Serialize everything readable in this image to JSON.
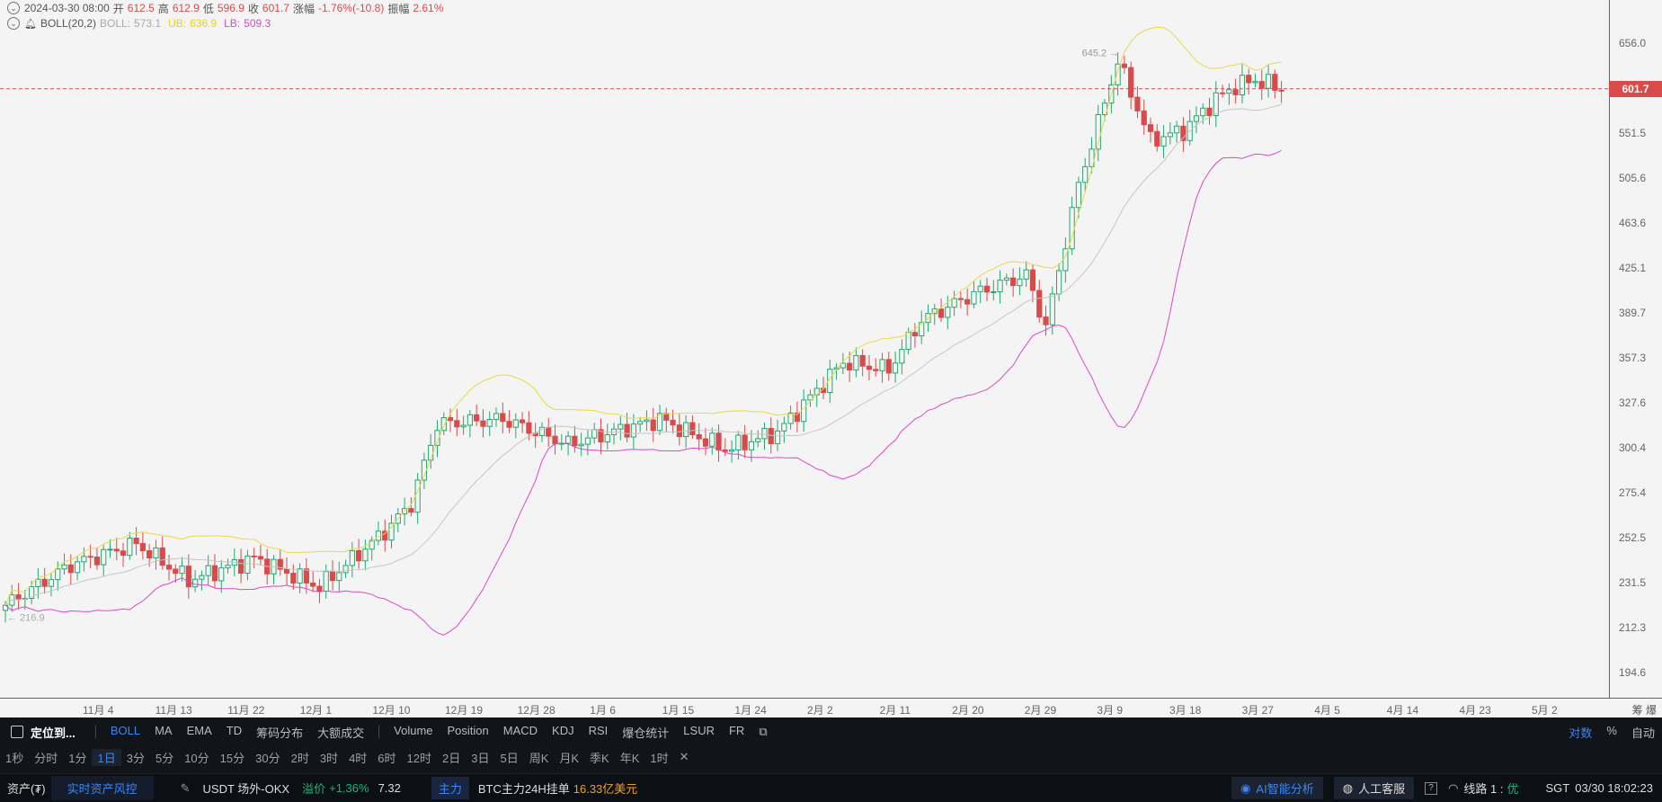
{
  "info": {
    "date": "2024-03-30 08:00",
    "open_label": "开",
    "open": "612.5",
    "high_label": "高",
    "high": "612.9",
    "low_label": "低",
    "low": "596.9",
    "close_label": "收",
    "close": "601.7",
    "change_label": "涨幅",
    "change": "-1.76%(-10.8)",
    "amp_label": "振幅",
    "amp": "2.61%"
  },
  "boll": {
    "name": "BOLL(20,2)",
    "mid_label": "BOLL:",
    "mid": "573.1",
    "ub_label": "UB:",
    "ub": "636.9",
    "lb_label": "LB:",
    "lb": "509.3"
  },
  "price_axis": {
    "ticks": [
      "656.0",
      "601.7",
      "551.5",
      "505.6",
      "463.6",
      "425.1",
      "389.7",
      "357.3",
      "327.6",
      "300.4",
      "275.4",
      "252.5",
      "231.5",
      "212.3",
      "194.6"
    ],
    "current": "601.7"
  },
  "time_axis": {
    "ticks": [
      "11月 4",
      "11月 13",
      "11月 22",
      "12月 1",
      "12月 10",
      "12月 19",
      "12月 28",
      "1月 6",
      "1月 15",
      "1月 24",
      "2月 2",
      "2月 11",
      "2月 20",
      "2月 29",
      "3月 9",
      "3月 18",
      "3月 27",
      "4月 5",
      "4月 14",
      "4月 23",
      "5月 2"
    ],
    "right_label": "筹 爆"
  },
  "chart_data": {
    "type": "candlestick",
    "interval": "1日",
    "scale": "log",
    "max_label": "645.2",
    "min_label": "216.9",
    "current_price": 601.7,
    "indicator": "BOLL(20,2)",
    "colors": {
      "up": "#22a86f",
      "down": "#d94a4a",
      "mid": "#c6c6c6",
      "ub": "#e8d84a",
      "lb": "#d94ac4"
    }
  },
  "toolbar": {
    "locate": "定位到...",
    "indicators": [
      "BOLL",
      "MA",
      "EMA",
      "TD",
      "筹码分布",
      "大额成交"
    ],
    "sub_indicators": [
      "Volume",
      "Position",
      "MACD",
      "KDJ",
      "RSI",
      "爆仓统计",
      "LSUR",
      "FR"
    ],
    "right_items": [
      "对数",
      "%",
      "自动"
    ]
  },
  "timeframes": [
    "1秒",
    "分时",
    "1分",
    "1日",
    "3分",
    "5分",
    "10分",
    "15分",
    "30分",
    "2时",
    "3时",
    "4时",
    "6时",
    "12时",
    "2日",
    "3日",
    "5日",
    "周K",
    "月K",
    "季K",
    "年K",
    "1时"
  ],
  "status": {
    "assets": "资产(₮)",
    "risk": "实时资产风控",
    "pair": "USDT 场外-OKX",
    "premium_label": "溢价",
    "premium": "+1.36%",
    "premium_value": "7.32",
    "main_tag": "主力",
    "btc_label": "BTC主力24H挂单",
    "btc_value": "16.33亿美元",
    "ai": "AI智能分析",
    "service": "人工客服",
    "line": "线路 1 :",
    "line_quality": "优",
    "tz": "SGT",
    "datetime": "03/30 18:02:23"
  }
}
